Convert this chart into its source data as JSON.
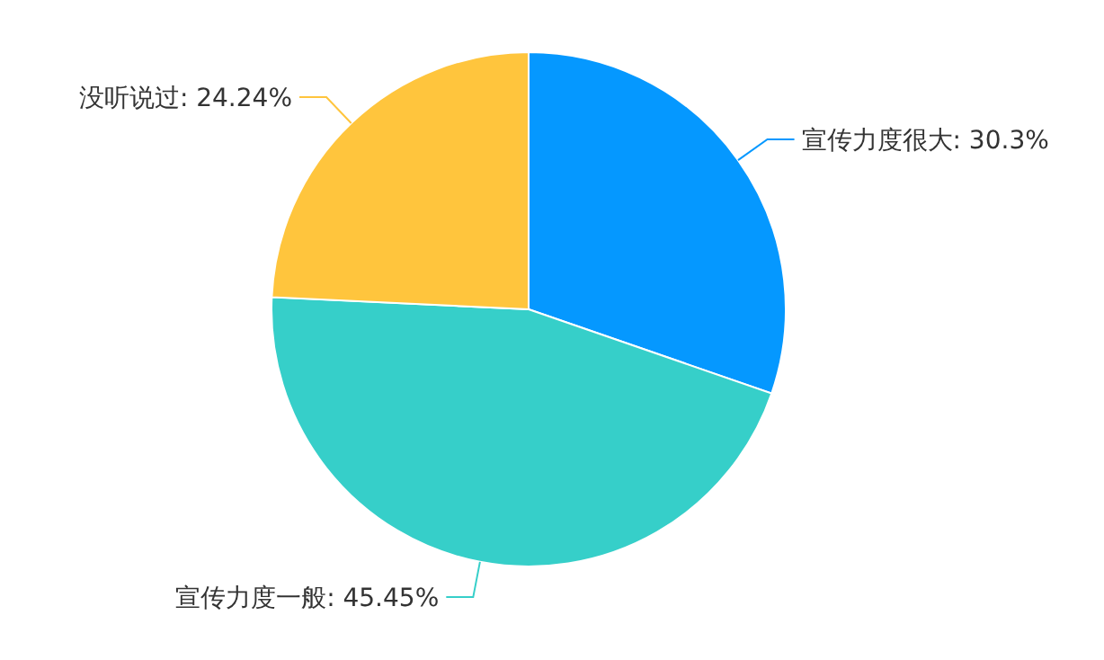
{
  "chart_data": {
    "type": "pie",
    "categories": [
      "宣传力度很大",
      "宣传力度一般",
      "没听说过"
    ],
    "values": [
      30.3,
      45.45,
      24.24
    ],
    "value_labels": [
      ": 30.3%",
      ": 45.45%",
      ": 24.24%"
    ],
    "colors": [
      "#0598ff",
      "#36cfc9",
      "#ffc53d"
    ]
  }
}
